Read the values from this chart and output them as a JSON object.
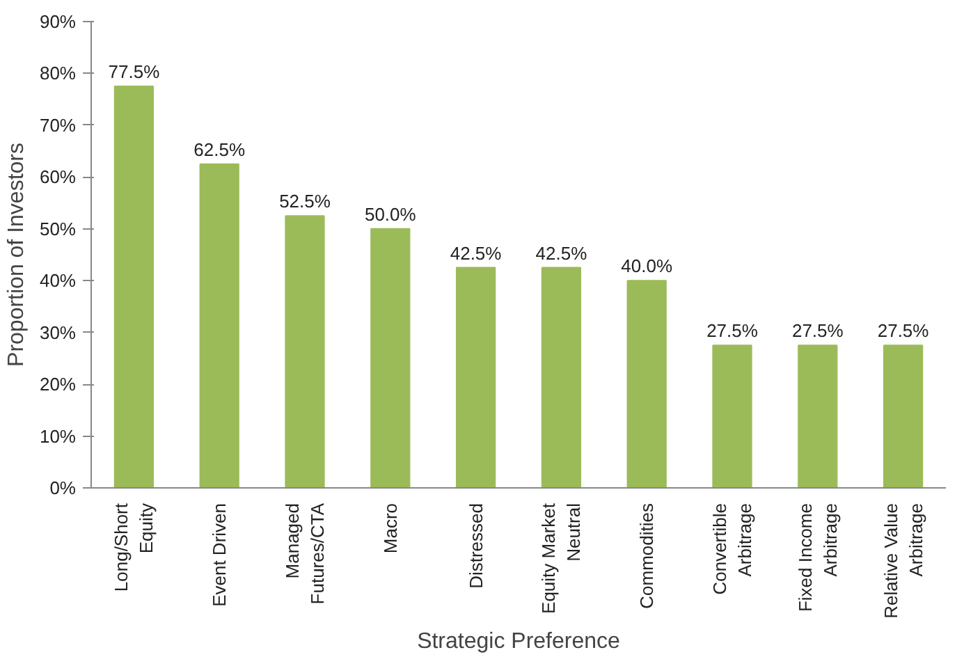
{
  "chart_data": {
    "type": "bar",
    "xlabel": "Strategic Preference",
    "ylabel": "Proportion of Investors",
    "categories": [
      "Long/Short Equity",
      "Event Driven",
      "Managed Futures/CTA",
      "Macro",
      "Distressed",
      "Equity Market Neutral",
      "Commodities",
      "Convertible Arbitrage",
      "Fixed Income Arbitrage",
      "Relative Value Arbitrage"
    ],
    "values": [
      77.5,
      62.5,
      52.5,
      50.0,
      42.5,
      42.5,
      40.0,
      27.5,
      27.5,
      27.5
    ],
    "value_labels": [
      "77.5%",
      "62.5%",
      "52.5%",
      "50.0%",
      "42.5%",
      "42.5%",
      "40.0%",
      "27.5%",
      "27.5%",
      "27.5%"
    ],
    "color": "#9bbb59",
    "ylim": [
      0,
      90
    ],
    "yticks": [
      {
        "value": 0,
        "label": "0%"
      },
      {
        "value": 10,
        "label": "10%"
      },
      {
        "value": 20,
        "label": "20%"
      },
      {
        "value": 30,
        "label": "30%"
      },
      {
        "value": 40,
        "label": "40%"
      },
      {
        "value": 50,
        "label": "50%"
      },
      {
        "value": 60,
        "label": "60%"
      },
      {
        "value": 70,
        "label": "70%"
      },
      {
        "value": 80,
        "label": "80%"
      },
      {
        "value": 90,
        "label": "90%"
      }
    ],
    "grid": false
  }
}
